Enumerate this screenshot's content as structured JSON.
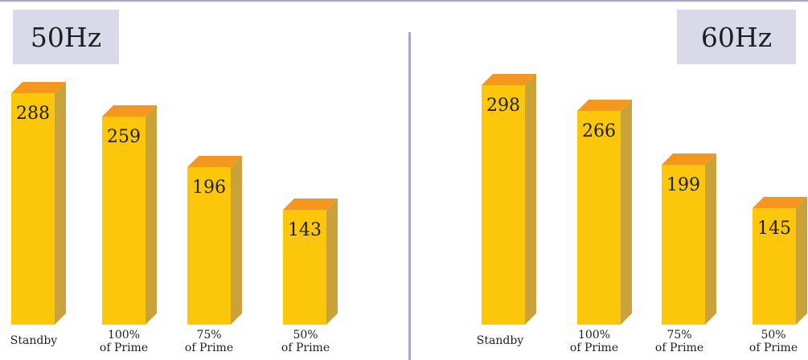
{
  "chart_data": [
    {
      "type": "bar",
      "frequency_label": "50Hz",
      "categories": [
        [
          "Standby"
        ],
        [
          "100%",
          "of Prime"
        ],
        [
          "75%",
          "of Prime"
        ],
        [
          "50%",
          "of Prime"
        ]
      ],
      "values": [
        288,
        259,
        196,
        143
      ]
    },
    {
      "type": "bar",
      "frequency_label": "60Hz",
      "categories": [
        [
          "Standby"
        ],
        [
          "100%",
          "of Prime"
        ],
        [
          "75%",
          "of Prime"
        ],
        [
          "50%",
          "of Prime"
        ]
      ],
      "values": [
        298,
        266,
        199,
        145
      ]
    }
  ],
  "colors": {
    "bar_front": "#fcc70b",
    "bar_top": "#f5961d",
    "bar_side": "#c9a23a",
    "label_bg": "#d9d9ea",
    "divider": "#a9a5cc"
  }
}
